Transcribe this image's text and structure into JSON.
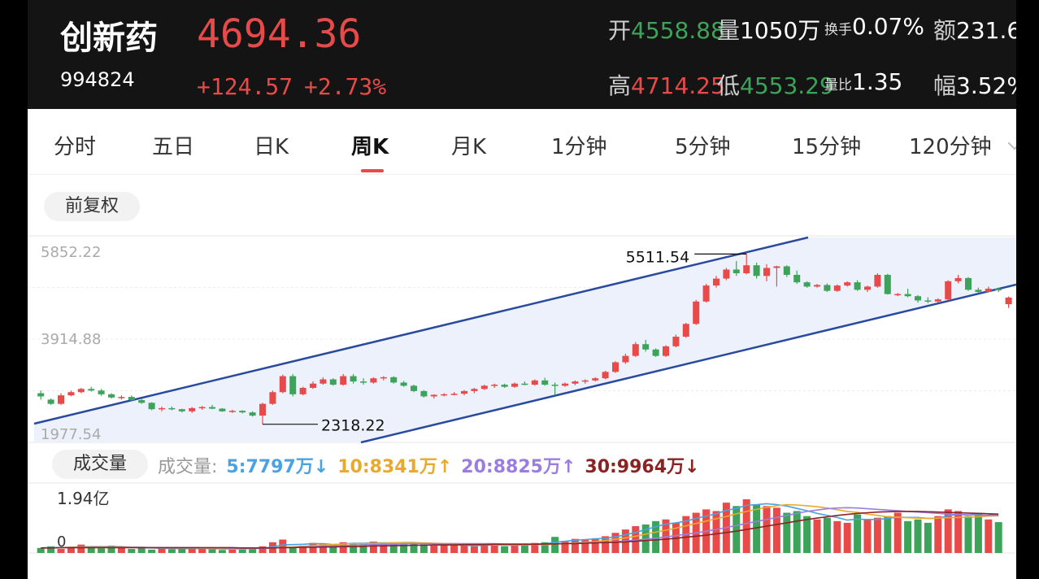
{
  "header": {
    "name": "创新药",
    "code": "994824",
    "price": "4694.36",
    "change": "+124.57",
    "change_pct": "+2.73%",
    "open_label": "开",
    "open": "4558.88",
    "volume_label": "量",
    "volume": "1050万",
    "turnover_label": "换手",
    "turnover": "0.07%",
    "amount_label": "额",
    "amount": "231.6",
    "high_label": "高",
    "high": "4714.25",
    "low_label": "低",
    "low": "4553.29",
    "volratio_label": "量比",
    "volratio": "1.35",
    "amplitude_label": "幅",
    "amplitude": "3.52%"
  },
  "tabs": [
    {
      "label": "分时"
    },
    {
      "label": "五日"
    },
    {
      "label": "日K"
    },
    {
      "label": "周K",
      "active": true
    },
    {
      "label": "月K"
    },
    {
      "label": "1分钟"
    },
    {
      "label": "5分钟"
    },
    {
      "label": "15分钟"
    },
    {
      "label": "120分钟"
    }
  ],
  "adjust_label": "前复权",
  "volume_panel": {
    "title": "成交量",
    "legend_label": "成交量:",
    "ma5": "5:7797万",
    "ma5_arrow": "↓",
    "ma10": "10:8341万",
    "ma10_arrow": "↑",
    "ma20": "20:8825万",
    "ma20_arrow": "↑",
    "ma30": "30:9964万",
    "ma30_arrow": "↓",
    "ymax_label": "1.94亿",
    "ymin_label": "0"
  },
  "colors": {
    "up": "#e84a4a",
    "down": "#3ea35a",
    "ma5": "#4aa3e0",
    "ma10": "#e8a92e",
    "ma20": "#9b7de0",
    "ma30": "#8b2323",
    "channel": "#2a4aa0"
  },
  "chart_data": {
    "type": "candlestick",
    "y_axis_labels": [
      "5852.22",
      "3914.88",
      "1977.54"
    ],
    "ylim": [
      1977.54,
      5852.22
    ],
    "annotations": [
      {
        "text": "5511.54"
      },
      {
        "text": "2318.22"
      }
    ],
    "ohlc": [
      [
        2900,
        2950,
        2780,
        2840
      ],
      [
        2780,
        2800,
        2680,
        2700
      ],
      [
        2700,
        2900,
        2680,
        2860
      ],
      [
        2860,
        2950,
        2840,
        2920
      ],
      [
        2920,
        3000,
        2900,
        2980
      ],
      [
        2980,
        3020,
        2930,
        2950
      ],
      [
        2950,
        2980,
        2850,
        2880
      ],
      [
        2880,
        2900,
        2800,
        2820
      ],
      [
        2820,
        2860,
        2780,
        2830
      ],
      [
        2830,
        2860,
        2760,
        2770
      ],
      [
        2770,
        2800,
        2700,
        2720
      ],
      [
        2720,
        2730,
        2580,
        2600
      ],
      [
        2600,
        2650,
        2560,
        2620
      ],
      [
        2620,
        2650,
        2580,
        2600
      ],
      [
        2600,
        2610,
        2540,
        2560
      ],
      [
        2560,
        2640,
        2530,
        2620
      ],
      [
        2620,
        2660,
        2590,
        2640
      ],
      [
        2640,
        2680,
        2600,
        2610
      ],
      [
        2610,
        2620,
        2550,
        2560
      ],
      [
        2560,
        2590,
        2530,
        2570
      ],
      [
        2570,
        2580,
        2520,
        2540
      ],
      [
        2540,
        2560,
        2460,
        2480
      ],
      [
        2480,
        2720,
        2318,
        2700
      ],
      [
        2700,
        2950,
        2680,
        2920
      ],
      [
        2920,
        3250,
        2900,
        3220
      ],
      [
        3220,
        3260,
        2840,
        2880
      ],
      [
        2880,
        3020,
        2860,
        3000
      ],
      [
        3000,
        3120,
        2980,
        3080
      ],
      [
        3080,
        3200,
        3060,
        3160
      ],
      [
        3160,
        3180,
        3040,
        3060
      ],
      [
        3060,
        3260,
        3040,
        3220
      ],
      [
        3220,
        3260,
        3080,
        3120
      ],
      [
        3120,
        3180,
        3060,
        3100
      ],
      [
        3100,
        3200,
        3080,
        3180
      ],
      [
        3180,
        3220,
        3140,
        3200
      ],
      [
        3200,
        3220,
        3080,
        3100
      ],
      [
        3100,
        3130,
        3020,
        3040
      ],
      [
        3040,
        3060,
        2920,
        2940
      ],
      [
        2940,
        2960,
        2820,
        2840
      ],
      [
        2840,
        2880,
        2800,
        2870
      ],
      [
        2870,
        2900,
        2840,
        2880
      ],
      [
        2880,
        2920,
        2860,
        2890
      ],
      [
        2890,
        2960,
        2860,
        2940
      ],
      [
        2940,
        3000,
        2900,
        2980
      ],
      [
        2980,
        3060,
        2960,
        3040
      ],
      [
        3040,
        3080,
        3000,
        3060
      ],
      [
        3060,
        3080,
        3000,
        3020
      ],
      [
        3020,
        3100,
        3000,
        3080
      ],
      [
        3080,
        3120,
        3050,
        3060
      ],
      [
        3060,
        3160,
        3040,
        3140
      ],
      [
        3140,
        3190,
        3040,
        3060
      ],
      [
        3060,
        3100,
        2860,
        3040
      ],
      [
        3040,
        3100,
        3020,
        3080
      ],
      [
        3080,
        3140,
        3050,
        3120
      ],
      [
        3120,
        3160,
        3080,
        3140
      ],
      [
        3140,
        3200,
        3120,
        3180
      ],
      [
        3180,
        3320,
        3160,
        3300
      ],
      [
        3300,
        3500,
        3280,
        3480
      ],
      [
        3480,
        3640,
        3450,
        3600
      ],
      [
        3600,
        3860,
        3580,
        3820
      ],
      [
        3820,
        3900,
        3680,
        3720
      ],
      [
        3720,
        3740,
        3580,
        3600
      ],
      [
        3600,
        3800,
        3580,
        3780
      ],
      [
        3780,
        4000,
        3760,
        3960
      ],
      [
        3960,
        4220,
        3940,
        4200
      ],
      [
        4200,
        4650,
        4180,
        4620
      ],
      [
        4620,
        4950,
        4600,
        4920
      ],
      [
        4920,
        5100,
        4880,
        5050
      ],
      [
        5050,
        5250,
        5020,
        5220
      ],
      [
        5220,
        5380,
        5100,
        5150
      ],
      [
        5150,
        5511,
        5130,
        5300
      ],
      [
        5300,
        5350,
        5050,
        5100
      ],
      [
        5100,
        5320,
        5000,
        5250
      ],
      [
        5250,
        5290,
        4900,
        5280
      ],
      [
        5280,
        5300,
        5080,
        5120
      ],
      [
        5120,
        5200,
        4950,
        4980
      ],
      [
        4980,
        5000,
        4880,
        4900
      ],
      [
        4900,
        4950,
        4880,
        4930
      ],
      [
        4930,
        4960,
        4800,
        4820
      ],
      [
        4820,
        4940,
        4800,
        4920
      ],
      [
        4920,
        5000,
        4900,
        4980
      ],
      [
        4980,
        5020,
        4820,
        4840
      ],
      [
        4840,
        4920,
        4800,
        4900
      ],
      [
        4900,
        5150,
        4880,
        5120
      ],
      [
        5120,
        5140,
        4750,
        4760
      ],
      [
        4760,
        4780,
        4720,
        4760
      ],
      [
        4760,
        4860,
        4700,
        4720
      ],
      [
        4720,
        4740,
        4600,
        4640
      ],
      [
        4640,
        4700,
        4590,
        4620
      ],
      [
        4620,
        4680,
        4600,
        4660
      ],
      [
        4660,
        5020,
        4640,
        5000
      ],
      [
        5000,
        5120,
        4960,
        5060
      ],
      [
        5060,
        5080,
        4820,
        4840
      ],
      [
        4840,
        4880,
        4780,
        4800
      ],
      [
        4800,
        4900,
        4790,
        4860
      ],
      [
        4860,
        4880,
        4800,
        4830
      ],
      [
        4570,
        4714,
        4500,
        4694
      ]
    ],
    "volume": [
      15,
      20,
      12,
      18,
      25,
      16,
      14,
      22,
      19,
      12,
      15,
      10,
      14,
      11,
      16,
      13,
      12,
      11,
      9,
      12,
      14,
      15,
      20,
      32,
      40,
      18,
      22,
      30,
      28,
      26,
      32,
      28,
      30,
      34,
      28,
      30,
      32,
      30,
      26,
      22,
      24,
      24,
      22,
      20,
      28,
      24,
      20,
      26,
      28,
      30,
      32,
      48,
      36,
      42,
      40,
      44,
      50,
      60,
      70,
      80,
      85,
      95,
      100,
      90,
      110,
      120,
      130,
      125,
      150,
      140,
      160,
      145,
      140,
      135,
      120,
      125,
      110,
      100,
      105,
      95,
      90,
      115,
      100,
      105,
      110,
      120,
      95,
      100,
      90,
      110,
      130,
      125,
      110,
      120,
      100,
      92
    ],
    "ma5": [
      15,
      16,
      16,
      17,
      18,
      19,
      19,
      19,
      19,
      17,
      16,
      15,
      14,
      13,
      13,
      13,
      13,
      13,
      12,
      12,
      12,
      13,
      14,
      18,
      24,
      25,
      26,
      28,
      28,
      25,
      27,
      29,
      29,
      30,
      30,
      30,
      31,
      31,
      29,
      28,
      27,
      25,
      23,
      22,
      23,
      24,
      23,
      23,
      24,
      26,
      27,
      32,
      35,
      38,
      40,
      42,
      44,
      48,
      54,
      61,
      70,
      78,
      86,
      90,
      95,
      103,
      110,
      117,
      127,
      133,
      142,
      144,
      147,
      144,
      140,
      133,
      126,
      118,
      112,
      106,
      98,
      101,
      100,
      100,
      103,
      107,
      106,
      106,
      103,
      103,
      111,
      115,
      113,
      118,
      117,
      110
    ],
    "ma10": [
      15,
      16,
      16,
      17,
      18,
      18,
      18,
      18,
      18,
      17,
      17,
      16,
      15,
      15,
      15,
      15,
      14,
      14,
      13,
      12,
      12,
      13,
      14,
      15,
      17,
      18,
      20,
      22,
      24,
      25,
      27,
      28,
      28,
      29,
      29,
      30,
      30,
      30,
      30,
      29,
      28,
      28,
      27,
      26,
      25,
      24,
      24,
      24,
      24,
      25,
      25,
      27,
      28,
      30,
      32,
      34,
      37,
      41,
      45,
      50,
      56,
      62,
      68,
      74,
      81,
      88,
      95,
      102,
      109,
      117,
      124,
      130,
      136,
      141,
      144,
      143,
      141,
      138,
      134,
      129,
      124,
      121,
      116,
      112,
      108,
      107,
      105,
      104,
      103,
      104,
      105,
      106,
      107,
      108,
      110,
      111
    ],
    "ma20": [
      15,
      16,
      16,
      16,
      17,
      17,
      17,
      17,
      17,
      17,
      17,
      16,
      16,
      16,
      16,
      16,
      15,
      15,
      15,
      14,
      14,
      14,
      14,
      15,
      16,
      17,
      18,
      19,
      20,
      21,
      22,
      23,
      24,
      25,
      26,
      26,
      27,
      28,
      28,
      28,
      28,
      28,
      28,
      28,
      28,
      28,
      27,
      27,
      27,
      27,
      27,
      28,
      28,
      29,
      30,
      31,
      32,
      34,
      36,
      38,
      41,
      44,
      48,
      52,
      56,
      60,
      65,
      70,
      76,
      82,
      88,
      94,
      100,
      106,
      112,
      118,
      124,
      128,
      132,
      134,
      135,
      134,
      132,
      130,
      128,
      126,
      124,
      122,
      120,
      118,
      116,
      115,
      114,
      113,
      112,
      112
    ],
    "ma30": [
      15,
      15,
      16,
      16,
      16,
      16,
      16,
      16,
      16,
      16,
      16,
      16,
      16,
      16,
      16,
      16,
      16,
      16,
      16,
      16,
      15,
      15,
      15,
      15,
      16,
      16,
      17,
      17,
      18,
      18,
      19,
      19,
      20,
      21,
      21,
      22,
      22,
      23,
      23,
      24,
      24,
      24,
      25,
      25,
      25,
      26,
      26,
      26,
      26,
      26,
      27,
      27,
      28,
      28,
      29,
      30,
      31,
      32,
      33,
      35,
      37,
      39,
      41,
      44,
      47,
      50,
      53,
      57,
      61,
      65,
      70,
      75,
      80,
      85,
      90,
      95,
      100,
      104,
      108,
      112,
      115,
      118,
      120,
      122,
      123,
      124,
      124,
      124,
      123,
      122,
      121,
      120,
      119,
      118,
      117,
      116
    ]
  }
}
